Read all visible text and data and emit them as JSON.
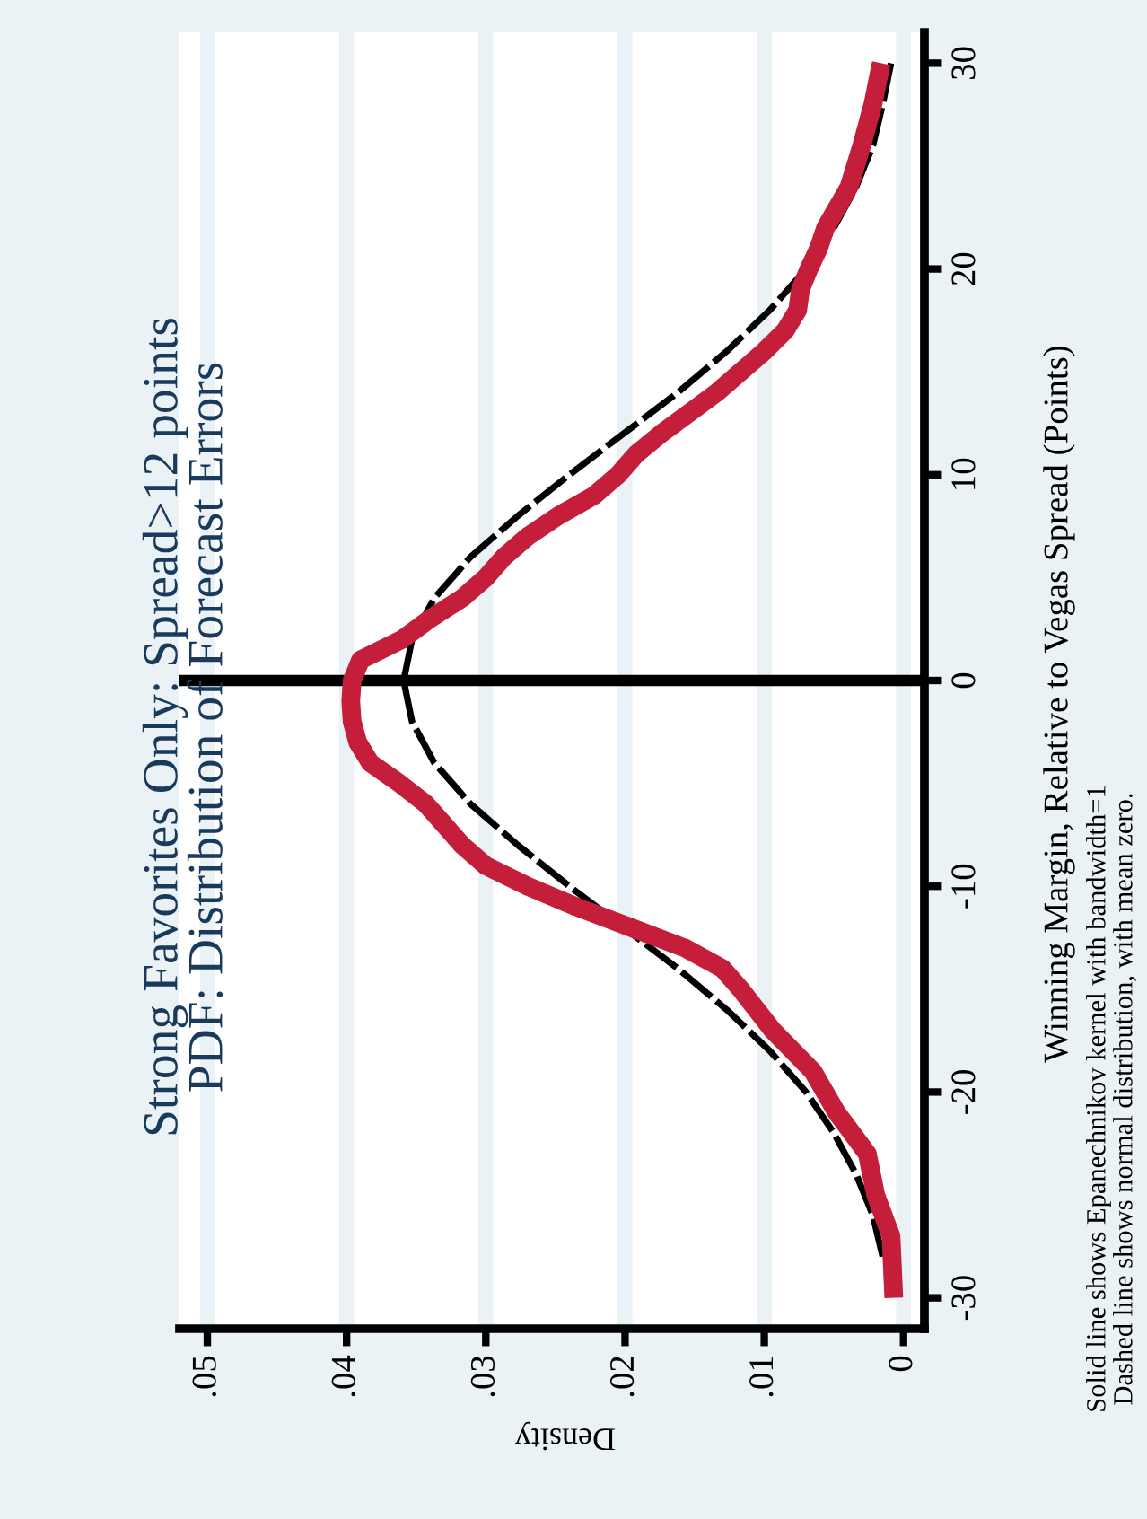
{
  "chart_data": {
    "type": "line",
    "title": "Strong Favorites Only: Spread>12 points",
    "subtitle": "PDF: Distribution of Forecast Errors",
    "ylabel": "Winning Margin, Relative to Vegas Spread (Points)",
    "xlabel": "Density",
    "annotations": [
      "Solid line shows Epanechnikov kernel with bandwidth=1",
      "Dashed line shows normal distribution, with mean zero."
    ],
    "series": [
      {
        "color": "#000000",
        "line_style": "dashed",
        "values": [
          -28,
          -26,
          -24,
          -22,
          -20,
          -18,
          -16,
          -14,
          -12,
          -10,
          -8,
          -6,
          -4,
          -2,
          0,
          2,
          4,
          6,
          8,
          10,
          12,
          14,
          16,
          18,
          20,
          22,
          24,
          26,
          28,
          30
        ],
        "x": [
          0.0015,
          0.0022,
          0.0034,
          0.005,
          0.007,
          0.0096,
          0.0127,
          0.0162,
          0.0201,
          0.024,
          0.0277,
          0.0311,
          0.0337,
          0.0353,
          0.0359,
          0.0353,
          0.0337,
          0.0311,
          0.0277,
          0.024,
          0.0201,
          0.0162,
          0.0127,
          0.0096,
          0.007,
          0.005,
          0.0034,
          0.0022,
          0.0015,
          0.0009
        ]
      },
      {
        "color": "#c41e3a",
        "line_style": "solid",
        "values": [
          -30,
          -27,
          -25,
          -23,
          -21,
          -19,
          -17,
          -15,
          -14,
          -13,
          -12,
          -11,
          -10,
          -9,
          -8,
          -7,
          -6,
          -5,
          -4,
          -3,
          -2,
          -1,
          0,
          1,
          2,
          3,
          4,
          5,
          6,
          7,
          8,
          9,
          10,
          11,
          12,
          14,
          16,
          17,
          18,
          19,
          20,
          21,
          22,
          24,
          26,
          28,
          30
        ],
        "x": [
          0.0007,
          0.0009,
          0.002,
          0.0026,
          0.0048,
          0.0065,
          0.0094,
          0.0117,
          0.013,
          0.0157,
          0.0196,
          0.0235,
          0.027,
          0.03,
          0.0317,
          0.033,
          0.0343,
          0.0362,
          0.0383,
          0.0392,
          0.0396,
          0.0397,
          0.0396,
          0.039,
          0.036,
          0.034,
          0.0317,
          0.03,
          0.0287,
          0.027,
          0.0248,
          0.0222,
          0.0205,
          0.0192,
          0.0174,
          0.0134,
          0.01,
          0.0085,
          0.0076,
          0.0074,
          0.0068,
          0.0061,
          0.0056,
          0.0039,
          0.003,
          0.0022,
          0.0016
        ]
      }
    ],
    "ylim": [
      -31.5,
      31.5
    ],
    "yticks": [
      -30,
      -20,
      -10,
      0,
      10,
      20,
      30
    ],
    "xlim": [
      0.052,
      -0.0015
    ],
    "xticks": [
      {
        "value": 0.05,
        "label": ".05"
      },
      {
        "value": 0.04,
        "label": ".04"
      },
      {
        "value": 0.03,
        "label": ".03"
      },
      {
        "value": 0.02,
        "label": ".02"
      },
      {
        "value": 0.01,
        "label": ".01"
      },
      {
        "value": 0,
        "label": "0"
      }
    ],
    "grid": "x",
    "ref_lines": [
      {
        "axis": "y",
        "value": 0,
        "color": "#000000"
      }
    ]
  }
}
